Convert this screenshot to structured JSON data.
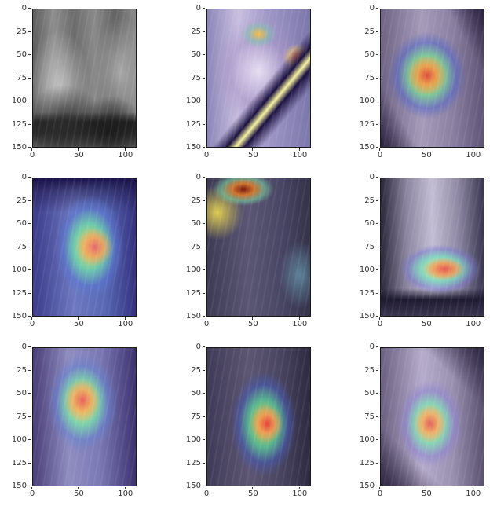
{
  "figure": {
    "panels": [
      {
        "id": 1,
        "kind": "radiograph"
      },
      {
        "id": 2,
        "kind": "heatmap-overlay"
      },
      {
        "id": 3,
        "kind": "heatmap-overlay"
      },
      {
        "id": 4,
        "kind": "heatmap-overlay"
      },
      {
        "id": 5,
        "kind": "heatmap-overlay"
      },
      {
        "id": 6,
        "kind": "heatmap-overlay"
      },
      {
        "id": 7,
        "kind": "heatmap-overlay"
      },
      {
        "id": 8,
        "kind": "heatmap-overlay"
      },
      {
        "id": 9,
        "kind": "heatmap-overlay"
      }
    ],
    "y_ticks": [
      "0",
      "25",
      "50",
      "75",
      "100",
      "125",
      "150"
    ],
    "x_ticks": [
      "0",
      "50",
      "100"
    ]
  }
}
